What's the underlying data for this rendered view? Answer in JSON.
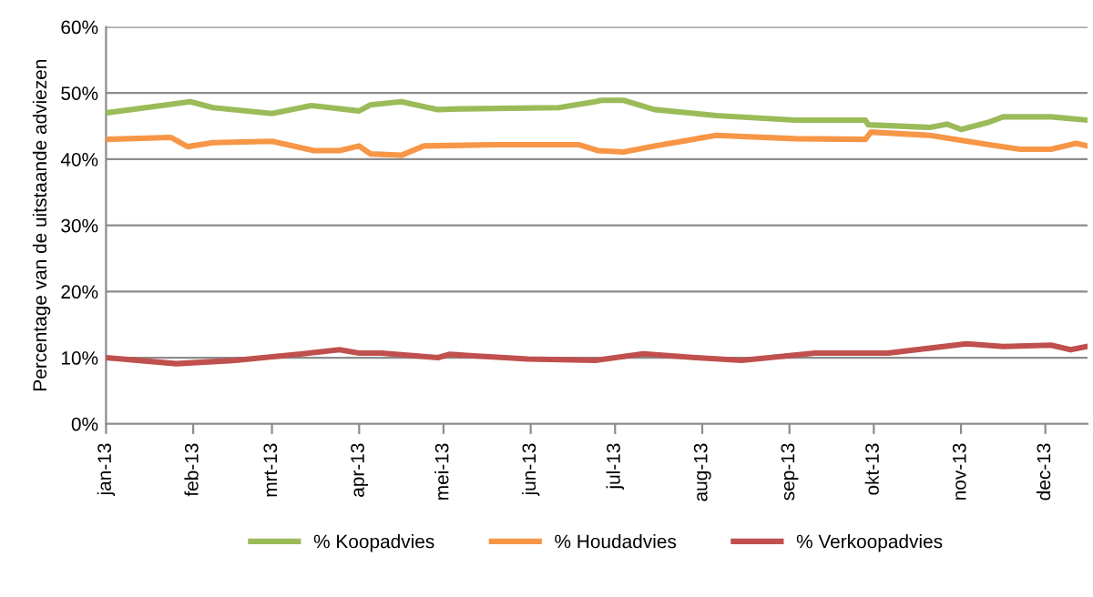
{
  "chart_data": {
    "type": "line",
    "ylabel": "Percentage van de uitstaande adviezen",
    "xlim": [
      "2013-01-01",
      "2013-12-16"
    ],
    "xticks": [
      {
        "value": "2013-01-01",
        "label": "jan-13"
      },
      {
        "value": "2013-02-01",
        "label": "feb-13"
      },
      {
        "value": "2013-03-01",
        "label": "mrt-13"
      },
      {
        "value": "2013-04-01",
        "label": "apr-13"
      },
      {
        "value": "2013-05-01",
        "label": "mei-13"
      },
      {
        "value": "2013-06-01",
        "label": "jun-13"
      },
      {
        "value": "2013-07-01",
        "label": "jul-13"
      },
      {
        "value": "2013-08-01",
        "label": "aug-13"
      },
      {
        "value": "2013-09-01",
        "label": "sep-13"
      },
      {
        "value": "2013-10-01",
        "label": "okt-13"
      },
      {
        "value": "2013-11-01",
        "label": "nov-13"
      },
      {
        "value": "2013-12-01",
        "label": "dec-13"
      }
    ],
    "ylim": [
      0,
      60
    ],
    "yticks": [
      {
        "value": 0,
        "label": "0%"
      },
      {
        "value": 10,
        "label": "10%"
      },
      {
        "value": 20,
        "label": "20%"
      },
      {
        "value": 30,
        "label": "30%"
      },
      {
        "value": 40,
        "label": "40%"
      },
      {
        "value": 50,
        "label": "50%"
      },
      {
        "value": 60,
        "label": "60%"
      }
    ],
    "grid": "y",
    "legend": "bottom",
    "marker": "none",
    "line_style": "solid",
    "series": [
      {
        "name": "% Koopadvies",
        "color": "#9bbb59",
        "x": [
          "2013-01-01",
          "2013-01-31",
          "2013-02-08",
          "2013-03-01",
          "2013-03-15",
          "2013-04-01",
          "2013-04-05",
          "2013-04-16",
          "2013-04-29",
          "2013-05-07",
          "2013-06-11",
          "2013-06-24",
          "2013-06-26",
          "2013-07-04",
          "2013-07-15",
          "2013-08-06",
          "2013-09-03",
          "2013-09-28",
          "2013-09-29",
          "2013-10-21",
          "2013-10-27",
          "2013-11-01",
          "2013-11-11",
          "2013-11-16",
          "2013-12-03",
          "2013-12-16"
        ],
        "values": [
          47.0,
          48.7,
          47.8,
          46.9,
          48.1,
          47.3,
          48.2,
          48.7,
          47.5,
          47.6,
          47.8,
          48.7,
          48.9,
          48.9,
          47.5,
          46.6,
          45.9,
          45.9,
          45.2,
          44.8,
          45.3,
          44.5,
          45.6,
          46.4,
          46.4,
          45.9
        ]
      },
      {
        "name": "% Houdadvies",
        "color": "#f79646",
        "x": [
          "2013-01-01",
          "2013-01-24",
          "2013-01-30",
          "2013-02-08",
          "2013-03-01",
          "2013-03-16",
          "2013-03-25",
          "2013-04-01",
          "2013-04-05",
          "2013-04-16",
          "2013-04-24",
          "2013-05-20",
          "2013-06-18",
          "2013-06-25",
          "2013-07-04",
          "2013-07-15",
          "2013-08-06",
          "2013-09-03",
          "2013-09-28",
          "2013-09-30",
          "2013-10-21",
          "2013-11-11",
          "2013-11-22",
          "2013-12-03",
          "2013-12-12",
          "2013-12-16"
        ],
        "values": [
          43.0,
          43.3,
          41.9,
          42.5,
          42.7,
          41.3,
          41.3,
          42.0,
          40.8,
          40.6,
          42.0,
          42.2,
          42.2,
          41.3,
          41.1,
          42.0,
          43.6,
          43.1,
          43.0,
          44.1,
          43.6,
          42.2,
          41.5,
          41.5,
          42.4,
          42.0
        ]
      },
      {
        "name": "% Verkoopadvies",
        "color": "#c0504d",
        "x": [
          "2013-01-01",
          "2013-01-26",
          "2013-02-16",
          "2013-03-12",
          "2013-03-25",
          "2013-04-01",
          "2013-04-09",
          "2013-04-29",
          "2013-05-03",
          "2013-05-31",
          "2013-06-24",
          "2013-07-11",
          "2013-07-30",
          "2013-08-15",
          "2013-09-10",
          "2013-10-06",
          "2013-11-03",
          "2013-11-16",
          "2013-12-03",
          "2013-12-10",
          "2013-12-16"
        ],
        "values": [
          10.0,
          9.1,
          9.6,
          10.6,
          11.2,
          10.7,
          10.7,
          10.0,
          10.5,
          9.8,
          9.6,
          10.6,
          10.0,
          9.6,
          10.7,
          10.7,
          12.1,
          11.7,
          11.9,
          11.2,
          11.7
        ]
      }
    ]
  }
}
